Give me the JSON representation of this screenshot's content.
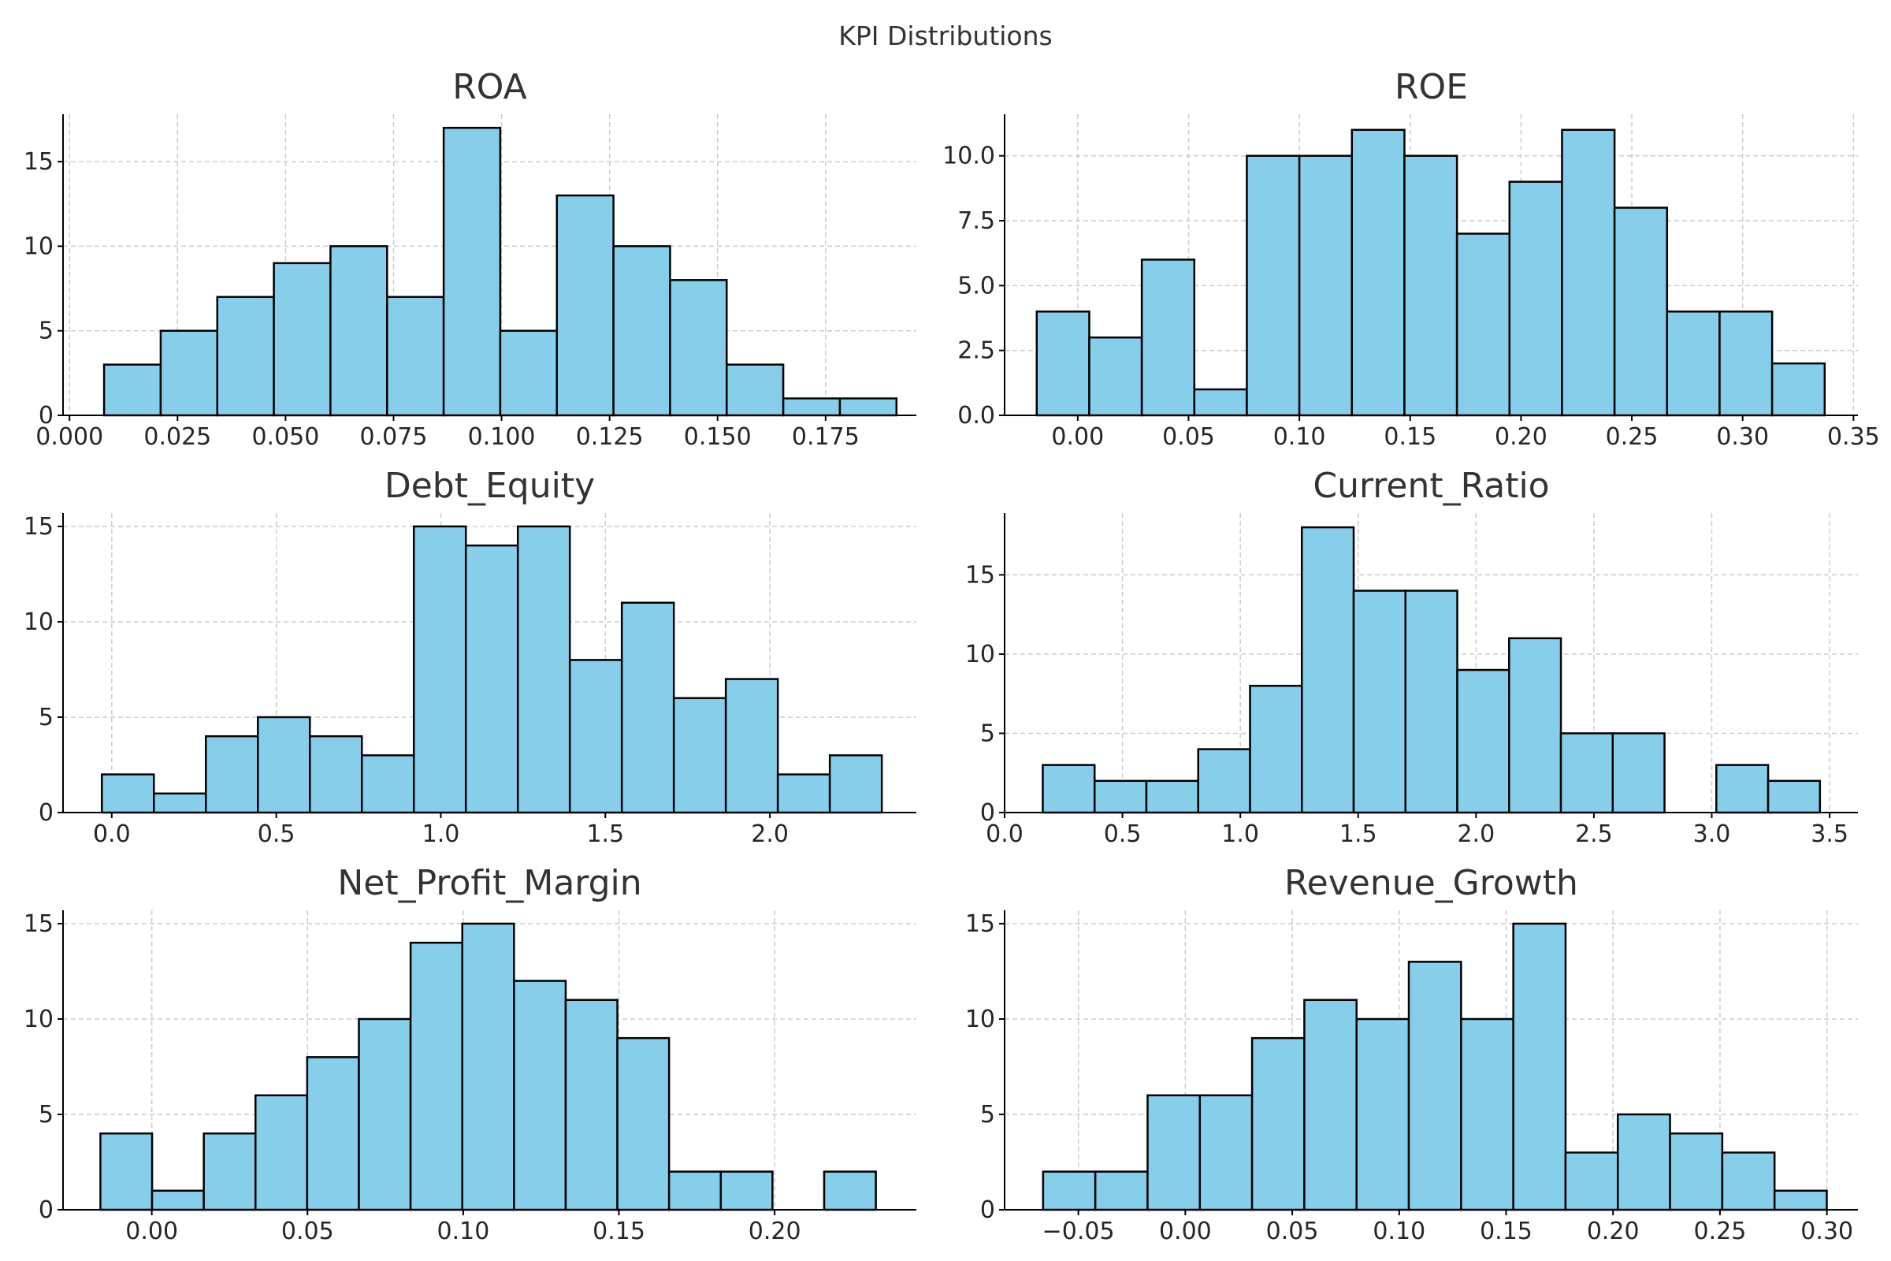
{
  "figure": {
    "title": "KPI Distributions"
  },
  "chart_data": [
    {
      "type": "bar",
      "title": "ROA",
      "xlabel": "",
      "ylabel": "",
      "bin_width": 0.0131,
      "bin_starts": [
        0.008,
        0.0211,
        0.0342,
        0.0473,
        0.0604,
        0.0735,
        0.0866,
        0.0997,
        0.1128,
        0.1259,
        0.139,
        0.1521,
        0.1652,
        0.1783
      ],
      "values": [
        3,
        5,
        7,
        9,
        10,
        7,
        17,
        5,
        13,
        10,
        8,
        3,
        1,
        1
      ],
      "xlim": [
        -0.0015,
        0.196
      ],
      "ylim": [
        0,
        17.8
      ],
      "xticks": [
        0.0,
        0.025,
        0.05,
        0.075,
        0.1,
        0.125,
        0.15,
        0.175
      ],
      "xtick_labels": [
        "0.000",
        "0.025",
        "0.050",
        "0.075",
        "0.100",
        "0.125",
        "0.150",
        "0.175"
      ],
      "yticks": [
        0,
        5,
        10,
        15
      ],
      "ytick_labels": [
        "0",
        "5",
        "10",
        "15"
      ],
      "grid": true,
      "color": "#87CEEB"
    },
    {
      "type": "bar",
      "title": "ROE",
      "xlabel": "",
      "ylabel": "",
      "bin_width": 0.0237,
      "bin_starts": [
        -0.0185,
        0.0052,
        0.0289,
        0.0526,
        0.0763,
        0.1,
        0.1237,
        0.1474,
        0.1711,
        0.1948,
        0.2185,
        0.2422,
        0.2659,
        0.2896,
        0.3133
      ],
      "values": [
        4,
        3,
        6,
        1,
        10,
        10,
        11,
        10,
        7,
        9,
        11,
        8,
        4,
        4,
        2
      ],
      "xlim": [
        -0.033,
        0.352
      ],
      "ylim": [
        0,
        11.6
      ],
      "xticks": [
        0.0,
        0.05,
        0.1,
        0.15,
        0.2,
        0.25,
        0.3,
        0.35
      ],
      "xtick_labels": [
        "0.00",
        "0.05",
        "0.10",
        "0.15",
        "0.20",
        "0.25",
        "0.30",
        "0.35"
      ],
      "yticks": [
        0,
        2.5,
        5,
        7.5,
        10
      ],
      "ytick_labels": [
        "0.0",
        "2.5",
        "5.0",
        "7.5",
        "10.0"
      ],
      "grid": true,
      "color": "#87CEEB"
    },
    {
      "type": "bar",
      "title": "Debt_Equity",
      "xlabel": "",
      "ylabel": "",
      "bin_width": 0.158,
      "bin_starts": [
        -0.03,
        0.128,
        0.286,
        0.444,
        0.602,
        0.76,
        0.918,
        1.076,
        1.234,
        1.392,
        1.55,
        1.708,
        1.866,
        2.024,
        2.182
      ],
      "values": [
        2,
        1,
        4,
        5,
        4,
        3,
        15,
        14,
        15,
        8,
        11,
        6,
        7,
        2,
        3
      ],
      "xlim": [
        -0.148,
        2.445
      ],
      "ylim": [
        0,
        15.7
      ],
      "xticks": [
        0.0,
        0.5,
        1.0,
        1.5,
        2.0
      ],
      "xtick_labels": [
        "0.0",
        "0.5",
        "1.0",
        "1.5",
        "2.0"
      ],
      "yticks": [
        0,
        5,
        10,
        15
      ],
      "ytick_labels": [
        "0",
        "5",
        "10",
        "15"
      ],
      "grid": true,
      "color": "#87CEEB"
    },
    {
      "type": "bar",
      "title": "Current_Ratio",
      "xlabel": "",
      "ylabel": "",
      "bin_width": 0.2198,
      "bin_starts": [
        0.162,
        0.3818,
        0.6016,
        0.8214,
        1.0412,
        1.261,
        1.4808,
        1.7006,
        1.9204,
        2.1402,
        2.36,
        2.5798,
        2.7996,
        3.0194,
        3.2392
      ],
      "values": [
        3,
        2,
        2,
        4,
        8,
        18,
        14,
        14,
        9,
        11,
        5,
        5,
        0,
        3,
        2
      ],
      "xlim": [
        0.0,
        3.62
      ],
      "ylim": [
        0,
        18.9
      ],
      "xticks": [
        0.0,
        0.5,
        1.0,
        1.5,
        2.0,
        2.5,
        3.0,
        3.5
      ],
      "xtick_labels": [
        "0.0",
        "0.5",
        "1.0",
        "1.5",
        "2.0",
        "2.5",
        "3.0",
        "3.5"
      ],
      "yticks": [
        0,
        5,
        10,
        15
      ],
      "ytick_labels": [
        "0",
        "5",
        "10",
        "15"
      ],
      "grid": true,
      "color": "#87CEEB"
    },
    {
      "type": "bar",
      "title": "Net_Profit_Margin",
      "xlabel": "",
      "ylabel": "",
      "bin_width": 0.0166,
      "bin_starts": [
        -0.0165,
        0.0001,
        0.0167,
        0.0333,
        0.0499,
        0.0665,
        0.0831,
        0.0997,
        0.1163,
        0.1329,
        0.1495,
        0.1661,
        0.1827,
        0.1993,
        0.2159
      ],
      "values": [
        4,
        1,
        4,
        6,
        8,
        10,
        14,
        15,
        12,
        11,
        9,
        2,
        2,
        0,
        2
      ],
      "xlim": [
        -0.0285,
        0.2455
      ],
      "ylim": [
        0,
        15.7
      ],
      "xticks": [
        0.0,
        0.05,
        0.1,
        0.15,
        0.2
      ],
      "xtick_labels": [
        "0.00",
        "0.05",
        "0.10",
        "0.15",
        "0.20"
      ],
      "yticks": [
        0,
        5,
        10,
        15
      ],
      "ytick_labels": [
        "0",
        "5",
        "10",
        "15"
      ],
      "grid": true,
      "color": "#87CEEB"
    },
    {
      "type": "bar",
      "title": "Revenue_Growth",
      "xlabel": "",
      "ylabel": "",
      "bin_width": 0.02443,
      "bin_starts": [
        -0.0665,
        -0.04207,
        -0.01764,
        0.00679,
        0.03122,
        0.05565,
        0.08008,
        0.10451,
        0.12894,
        0.15337,
        0.1778,
        0.20223,
        0.22666,
        0.25109,
        0.27552
      ],
      "values": [
        2,
        2,
        6,
        6,
        9,
        11,
        10,
        13,
        10,
        15,
        3,
        5,
        4,
        3,
        1
      ],
      "xlim": [
        -0.0845,
        0.3145
      ],
      "ylim": [
        0,
        15.7
      ],
      "xticks": [
        -0.05,
        0.0,
        0.05,
        0.1,
        0.15,
        0.2,
        0.25,
        0.3
      ],
      "xtick_labels": [
        "−0.05",
        "0.00",
        "0.05",
        "0.10",
        "0.15",
        "0.20",
        "0.25",
        "0.30"
      ],
      "yticks": [
        0,
        5,
        10,
        15
      ],
      "ytick_labels": [
        "0",
        "5",
        "10",
        "15"
      ],
      "grid": true,
      "color": "#87CEEB"
    }
  ]
}
